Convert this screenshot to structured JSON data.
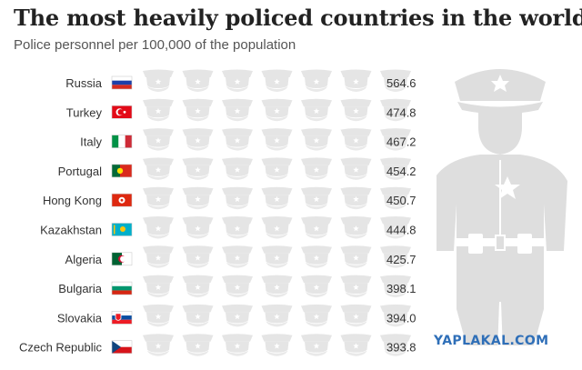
{
  "header": {
    "title": "The most heavily policed countries in the world",
    "subtitle": "Police personnel per 100,000 of the population"
  },
  "watermark": "YAPLAKAL.COM",
  "colors": {
    "empty_cap": "#e5e5e5",
    "officer_figure": "#dedede",
    "row_colors": [
      "#4066d0",
      "#3f6fc9",
      "#3f79c1",
      "#3e83b8",
      "#3d8eae",
      "#3c98a5",
      "#3ca398",
      "#3dae8c",
      "#3eba7e",
      "#40c474"
    ]
  },
  "chart_data": {
    "type": "pictogram",
    "title": "The most heavily policed countries in the world",
    "subtitle": "Police personnel per 100,000 of the population",
    "icon": "police-cap-icon",
    "icon_value": 100,
    "max_icons": 7,
    "categories": [
      "Russia",
      "Turkey",
      "Italy",
      "Portugal",
      "Hong Kong",
      "Kazakhstan",
      "Algeria",
      "Bulgaria",
      "Slovakia",
      "Czech Republic"
    ],
    "flags": [
      "flag-russia",
      "flag-turkey",
      "flag-italy",
      "flag-portugal",
      "flag-hong-kong",
      "flag-kazakhstan",
      "flag-algeria",
      "flag-bulgaria",
      "flag-slovakia",
      "flag-czech-republic"
    ],
    "values": [
      564.6,
      474.8,
      467.2,
      454.2,
      450.7,
      444.8,
      425.7,
      398.1,
      394.0,
      393.8
    ],
    "value_labels": [
      "564.6",
      "474.8",
      "467.2",
      "454.2",
      "450.7",
      "444.8",
      "425.7",
      "398.1",
      "394.0",
      "393.8"
    ]
  }
}
